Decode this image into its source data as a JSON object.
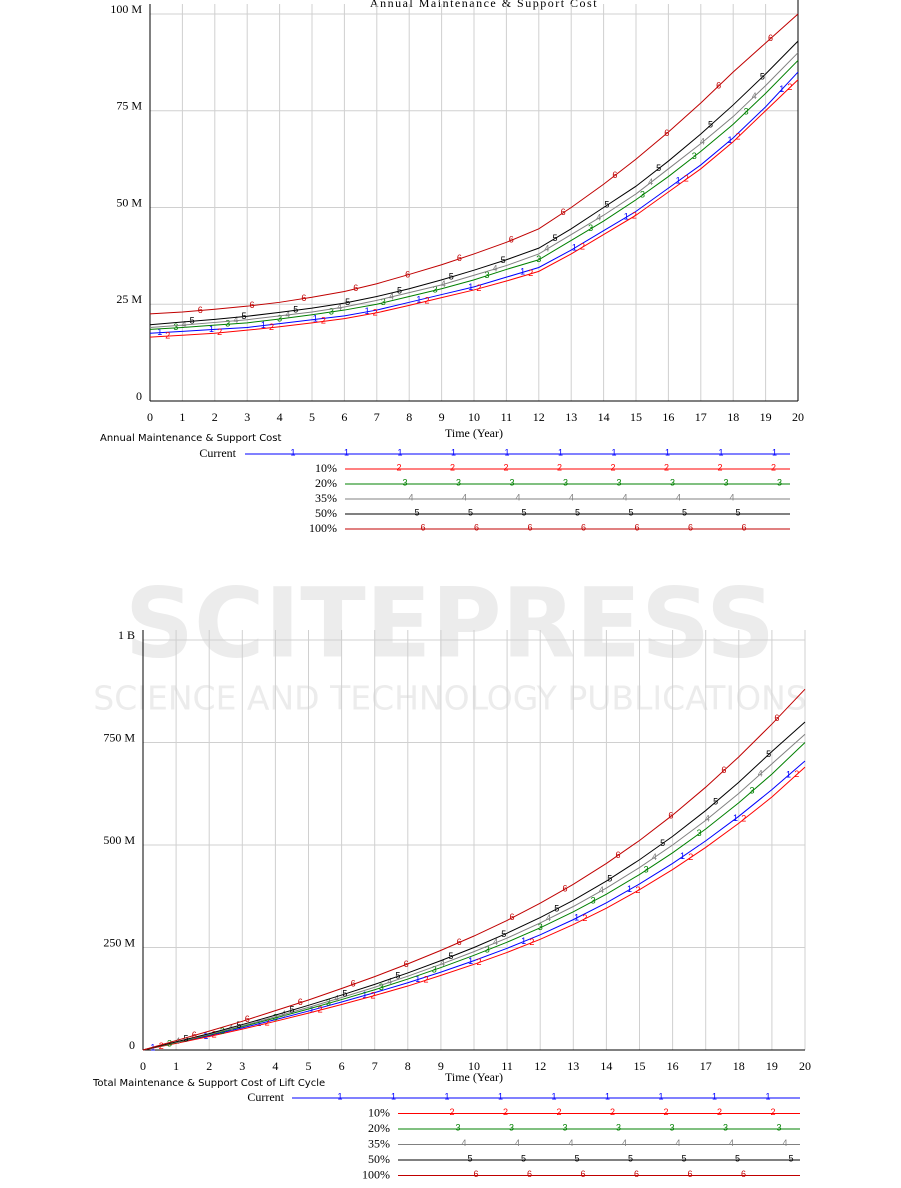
{
  "chart_data": [
    {
      "type": "line",
      "title": "Annual Maintenance & Support Cost",
      "x_label": "Time (Year)",
      "x": [
        0,
        1,
        2,
        3,
        4,
        5,
        6,
        7,
        8,
        9,
        10,
        11,
        12,
        13,
        14,
        15,
        16,
        17,
        18,
        19,
        20
      ],
      "xlim": [
        0,
        20
      ],
      "xticks": [
        0,
        1,
        2,
        3,
        4,
        5,
        6,
        7,
        8,
        9,
        10,
        11,
        12,
        13,
        14,
        15,
        16,
        17,
        18,
        19,
        20
      ],
      "ylim": [
        0,
        100
      ],
      "yticks": [
        0,
        {
          "value": 25,
          "label": "25 M"
        },
        {
          "value": 50,
          "label": "50 M"
        },
        {
          "value": 75,
          "label": "75 M"
        },
        {
          "value": 100,
          "label": "100 M"
        }
      ],
      "grid": true,
      "series": [
        {
          "name": "Current",
          "marker": "1",
          "color": "#0000ff",
          "values": [
            17.5,
            18,
            18.5,
            19,
            20,
            21,
            22,
            23.5,
            25.5,
            27.5,
            29.5,
            32,
            34.5,
            39,
            44,
            49,
            55,
            61,
            68,
            76,
            85
          ]
        },
        {
          "name": "10%",
          "marker": "2",
          "color": "#ff0000",
          "values": [
            16.5,
            17,
            17.5,
            18.3,
            19.2,
            20.2,
            21.3,
            22.8,
            24.7,
            26.7,
            28.7,
            31,
            33.5,
            38,
            43,
            48,
            54,
            60,
            67,
            75,
            83
          ]
        },
        {
          "name": "20%",
          "marker": "3",
          "color": "#008000",
          "values": [
            18.5,
            19,
            19.6,
            20.2,
            21.2,
            22.3,
            23.5,
            25,
            27,
            29,
            31.3,
            34,
            36.5,
            41.5,
            46.5,
            52,
            58,
            64.5,
            71.5,
            79.5,
            88
          ]
        },
        {
          "name": "35%",
          "marker": "4",
          "color": "#808080",
          "values": [
            19,
            19.6,
            20.3,
            21,
            22,
            23,
            24.3,
            26,
            28,
            30,
            32.5,
            35,
            38,
            43,
            48,
            53.5,
            60,
            66.5,
            73.5,
            81.5,
            90
          ]
        },
        {
          "name": "50%",
          "marker": "5",
          "color": "#000000",
          "values": [
            19.7,
            20.4,
            21.1,
            21.9,
            22.9,
            24,
            25.3,
            27,
            29,
            31.3,
            33.8,
            36.5,
            39.5,
            44.5,
            50,
            55.5,
            62,
            69,
            76.5,
            84.5,
            93
          ]
        },
        {
          "name": "100%",
          "marker": "6",
          "color": "#c00000",
          "values": [
            22.5,
            23,
            23.7,
            24.5,
            25.5,
            26.8,
            28.3,
            30.3,
            32.7,
            35.2,
            38,
            41,
            44.5,
            50,
            56,
            62.5,
            69.5,
            77,
            85,
            92.5,
            100
          ]
        }
      ]
    },
    {
      "type": "line",
      "title": "Total Maintenance & Support Cost of Lift Cycle",
      "x_label": "Time (Year)",
      "x": [
        0,
        1,
        2,
        3,
        4,
        5,
        6,
        7,
        8,
        9,
        10,
        11,
        12,
        13,
        14,
        15,
        16,
        17,
        18,
        19,
        20
      ],
      "xlim": [
        0,
        20
      ],
      "xticks": [
        0,
        1,
        2,
        3,
        4,
        5,
        6,
        7,
        8,
        9,
        10,
        11,
        12,
        13,
        14,
        15,
        16,
        17,
        18,
        19,
        20
      ],
      "ylim": [
        0,
        1000
      ],
      "yticks": [
        0,
        {
          "value": 250,
          "label": "250 M"
        },
        {
          "value": 500,
          "label": "500 M"
        },
        {
          "value": 750,
          "label": "750 M"
        },
        {
          "value": 1000,
          "label": "1 B"
        }
      ],
      "grid": true,
      "series": [
        {
          "name": "Current",
          "marker": "1",
          "color": "#0000ff",
          "values": [
            0,
            17,
            35,
            54,
            74,
            95,
            117,
            140,
            164,
            190,
            218,
            248,
            281,
            318,
            359,
            405,
            455,
            510,
            570,
            635,
            705
          ]
        },
        {
          "name": "10%",
          "marker": "2",
          "color": "#ff0000",
          "values": [
            0,
            16,
            33,
            51,
            70,
            90,
            111,
            133,
            156,
            182,
            209,
            238,
            270,
            306,
            346,
            391,
            440,
            494,
            553,
            617,
            690
          ]
        },
        {
          "name": "20%",
          "marker": "3",
          "color": "#008000",
          "values": [
            0,
            18,
            37,
            57,
            78,
            100,
            123,
            147,
            173,
            201,
            231,
            263,
            298,
            337,
            380,
            428,
            481,
            539,
            603,
            673,
            750
          ]
        },
        {
          "name": "35%",
          "marker": "4",
          "color": "#808080",
          "values": [
            0,
            19,
            38,
            59,
            81,
            104,
            128,
            153,
            180,
            209,
            240,
            273,
            310,
            350,
            395,
            445,
            500,
            560,
            626,
            698,
            770
          ]
        },
        {
          "name": "50%",
          "marker": "5",
          "color": "#000000",
          "values": [
            0,
            20,
            40,
            62,
            85,
            109,
            134,
            160,
            188,
            218,
            250,
            285,
            323,
            365,
            412,
            464,
            521,
            584,
            653,
            728,
            800
          ]
        },
        {
          "name": "100%",
          "marker": "6",
          "color": "#c00000",
          "values": [
            0,
            23,
            46,
            70,
            96,
            122,
            150,
            179,
            210,
            243,
            278,
            316,
            358,
            404,
            455,
            511,
            573,
            641,
            715,
            795,
            880
          ]
        }
      ]
    }
  ],
  "watermark": {
    "title": "SCITEPRESS",
    "subtitle": "SCIENCE AND TECHNOLOGY PUBLICATIONS"
  }
}
